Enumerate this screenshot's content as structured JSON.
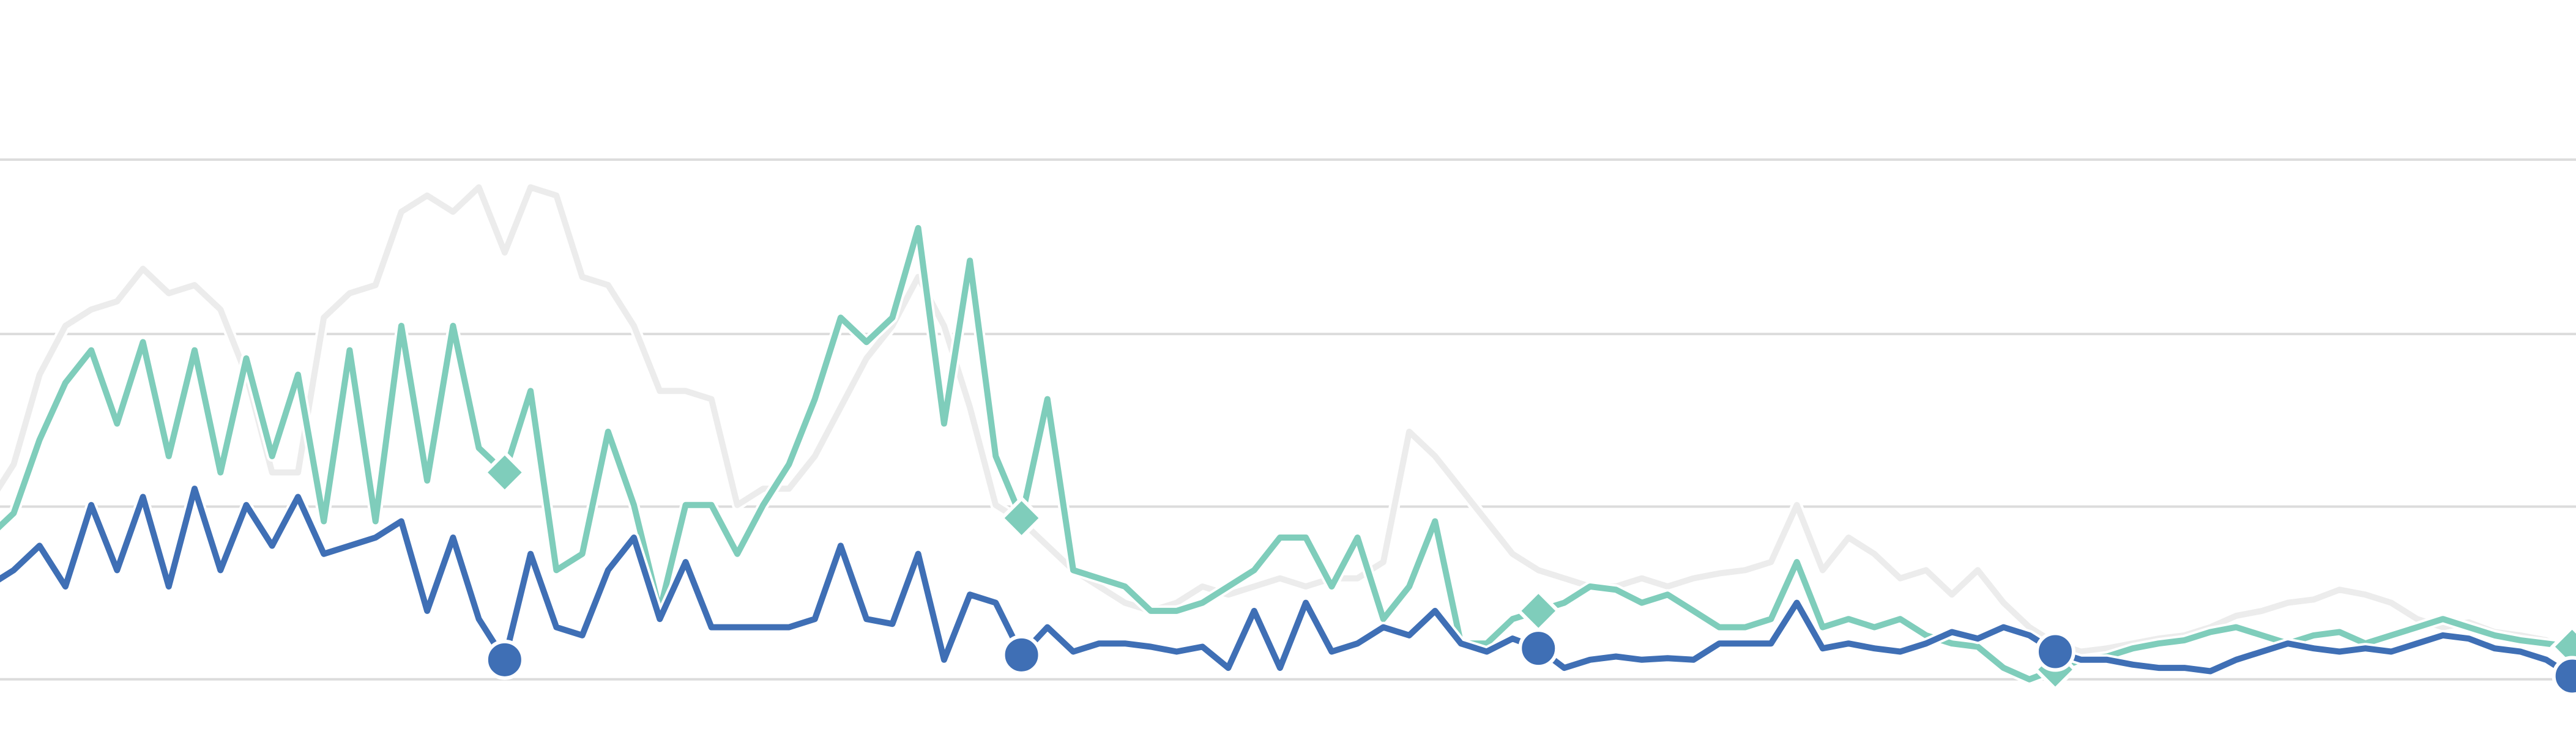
{
  "chart_data": {
    "type": "line",
    "x": [
      0,
      1,
      2,
      3,
      4,
      5,
      6,
      7,
      8,
      9,
      10,
      11,
      12,
      13,
      14,
      15,
      16,
      17,
      18,
      19,
      20,
      21,
      22,
      23,
      24,
      25,
      26,
      27,
      28,
      29,
      30,
      31,
      32,
      33,
      34,
      35,
      36,
      37,
      38,
      39,
      40,
      41,
      42,
      43,
      44,
      45,
      46,
      47,
      48,
      49,
      50,
      51,
      52,
      53,
      54,
      55,
      56,
      57,
      58,
      59,
      60,
      61,
      62,
      63,
      64,
      65,
      66,
      67,
      68,
      69,
      70,
      71,
      72,
      73,
      74,
      75,
      76,
      77,
      78,
      79,
      80,
      81,
      82,
      83,
      84,
      85,
      86,
      87,
      88,
      89,
      90,
      91,
      92,
      93,
      94,
      95,
      96,
      97,
      98,
      99,
      100
    ],
    "xlim": [
      0.47,
      100.15
    ],
    "ylim": [
      -44,
      417
    ],
    "yticks": [
      0,
      106,
      212,
      319
    ],
    "grid": true,
    "marker_every": 20,
    "series": [
      {
        "color": "#ececec",
        "marker": null,
        "values": [
          107,
          132,
          187,
          217,
          227,
          232,
          252,
          237,
          242,
          227,
          187,
          127,
          127,
          222,
          237,
          242,
          287,
          297,
          287,
          302,
          262,
          302,
          297,
          247,
          242,
          217,
          177,
          177,
          172,
          107,
          117,
          117,
          137,
          167,
          197,
          217,
          247,
          217,
          167,
          107,
          97,
          82,
          67,
          57,
          47,
          42,
          47,
          57,
          52,
          57,
          62,
          57,
          62,
          62,
          72,
          152,
          137,
          117,
          97,
          77,
          67,
          62,
          57,
          57,
          62,
          57,
          62,
          65,
          67,
          72,
          107,
          67,
          87,
          77,
          62,
          67,
          52,
          67,
          47,
          32,
          22,
          17,
          19,
          22,
          25,
          27,
          32,
          39,
          42,
          47,
          49,
          55,
          52,
          47,
          37,
          32,
          35,
          29,
          27,
          24,
          17
        ]
      },
      {
        "color": "#7fcdbb",
        "marker": "diamond",
        "values": [
          87,
          102,
          147,
          182,
          202,
          157,
          207,
          137,
          202,
          127,
          197,
          137,
          187,
          97,
          202,
          97,
          217,
          122,
          217,
          142,
          127,
          177,
          67,
          77,
          152,
          107,
          42,
          107,
          107,
          77,
          107,
          132,
          172,
          222,
          207,
          222,
          277,
          157,
          257,
          137,
          99,
          172,
          67,
          62,
          57,
          42,
          42,
          47,
          57,
          67,
          87,
          87,
          57,
          87,
          37,
          57,
          97,
          22,
          22,
          37,
          42,
          47,
          57,
          55,
          47,
          52,
          42,
          32,
          32,
          37,
          72,
          32,
          37,
          32,
          37,
          27,
          22,
          20,
          7,
          0,
          6,
          12,
          14,
          19,
          22,
          24,
          29,
          32,
          27,
          22,
          27,
          29,
          22,
          27,
          32,
          37,
          32,
          27,
          24,
          22,
          20
        ]
      },
      {
        "color": "#3f6fb5",
        "marker": "circle",
        "values": [
          57,
          67,
          82,
          57,
          107,
          67,
          112,
          57,
          117,
          67,
          107,
          82,
          112,
          77,
          82,
          87,
          97,
          42,
          87,
          37,
          12,
          77,
          32,
          27,
          67,
          87,
          37,
          72,
          32,
          32,
          32,
          32,
          37,
          82,
          37,
          34,
          77,
          12,
          52,
          47,
          15,
          32,
          17,
          22,
          22,
          20,
          17,
          20,
          7,
          42,
          7,
          47,
          17,
          22,
          32,
          27,
          42,
          22,
          17,
          25,
          19,
          7,
          12,
          14,
          12,
          13,
          12,
          22,
          22,
          22,
          47,
          19,
          22,
          19,
          17,
          22,
          29,
          25,
          32,
          27,
          17,
          12,
          12,
          9,
          7,
          7,
          5,
          12,
          17,
          22,
          19,
          17,
          19,
          17,
          22,
          27,
          25,
          19,
          17,
          12,
          2
        ]
      }
    ]
  }
}
